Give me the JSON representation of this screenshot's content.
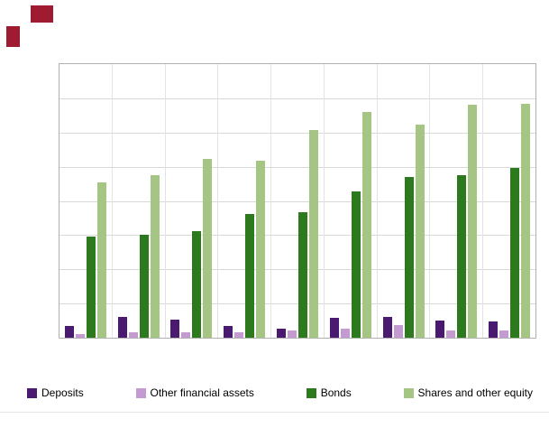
{
  "logo": {
    "color": "#9e1b32"
  },
  "chart_data": {
    "type": "bar",
    "title": "",
    "xlabel": "",
    "ylabel": "",
    "categories": [
      "",
      "",
      "",
      "",
      "",
      "",
      "",
      "",
      ""
    ],
    "series": [
      {
        "name": "Deposits",
        "color": "#4a1a70",
        "values": [
          34,
          60,
          52,
          34,
          26,
          58,
          60,
          50,
          47
        ]
      },
      {
        "name": "Other financial assets",
        "color": "#c39ad2",
        "values": [
          10,
          16,
          16,
          16,
          21,
          26,
          37,
          21,
          21
        ]
      },
      {
        "name": "Bonds",
        "color": "#2d7a1e",
        "values": [
          296,
          300,
          312,
          362,
          367,
          428,
          470,
          475,
          496
        ]
      },
      {
        "name": "Shares and other equity",
        "color": "#a4c583",
        "values": [
          455,
          475,
          522,
          517,
          606,
          661,
          622,
          682,
          685
        ]
      }
    ],
    "ylim": [
      0,
      800
    ],
    "ytick_step": 100,
    "grid": true,
    "legend_position": "bottom"
  }
}
